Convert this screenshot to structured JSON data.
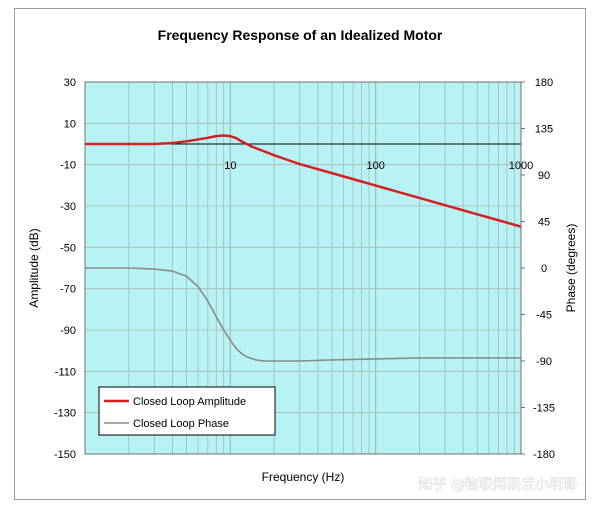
{
  "chart_data": {
    "type": "line",
    "title": "Frequency Response of an Idealized Motor",
    "xlabel": "Frequency (Hz)",
    "ylabel_left": "Amplitude (dB)",
    "ylabel_right": "Phase (degrees)",
    "x_scale": "log",
    "xlim": [
      1,
      1000
    ],
    "ylim_left": [
      -150,
      30
    ],
    "ylim_right": [
      -180,
      180
    ],
    "x_ticks": [
      "10",
      "100",
      "1000"
    ],
    "y_ticks_left": [
      "30",
      "10",
      "-10",
      "-30",
      "-50",
      "-70",
      "-90",
      "-110",
      "-130",
      "-150"
    ],
    "y_ticks_right": [
      "180",
      "135",
      "90",
      "45",
      "0",
      "-45",
      "-90",
      "-135",
      "-180"
    ],
    "grid": true,
    "legend_position": "bottom-left",
    "series": [
      {
        "name": "Closed Loop Amplitude",
        "axis": "left",
        "color": "#d42020",
        "x": [
          1,
          2,
          3,
          4,
          5,
          6,
          7,
          8,
          9,
          10,
          11,
          12,
          14,
          17,
          20,
          25,
          30,
          40,
          50,
          70,
          100,
          150,
          200,
          300,
          500,
          700,
          1000
        ],
        "y": [
          0,
          0,
          0,
          0.5,
          1.3,
          2.2,
          3.0,
          3.8,
          4.1,
          3.8,
          2.8,
          1.2,
          -1.2,
          -3.5,
          -5.4,
          -7.8,
          -9.7,
          -12.2,
          -14.1,
          -17.0,
          -20.1,
          -23.6,
          -26.1,
          -29.6,
          -34.0,
          -36.9,
          -40.0
        ]
      },
      {
        "name": "Closed Loop Phase",
        "axis": "right",
        "color": "#8a8a8a",
        "x": [
          1,
          1.5,
          2,
          3,
          4,
          5,
          6,
          7,
          8,
          9,
          10,
          11,
          12,
          13,
          15,
          17,
          20,
          25,
          30,
          50,
          100,
          200,
          500,
          1000
        ],
        "y": [
          0,
          0,
          0,
          -1,
          -3,
          -8,
          -18,
          -32,
          -47,
          -60,
          -70,
          -78,
          -83,
          -86,
          -89,
          -90,
          -90,
          -90,
          -90,
          -89,
          -88,
          -87,
          -87,
          -87
        ]
      }
    ]
  },
  "watermark": "知乎 @物联网研发小明哥",
  "colors": {
    "plot_background": "#b7f3f5",
    "grid": "#a8b8b8",
    "legend_background": "#ffffff",
    "zero_line": "#000000"
  }
}
